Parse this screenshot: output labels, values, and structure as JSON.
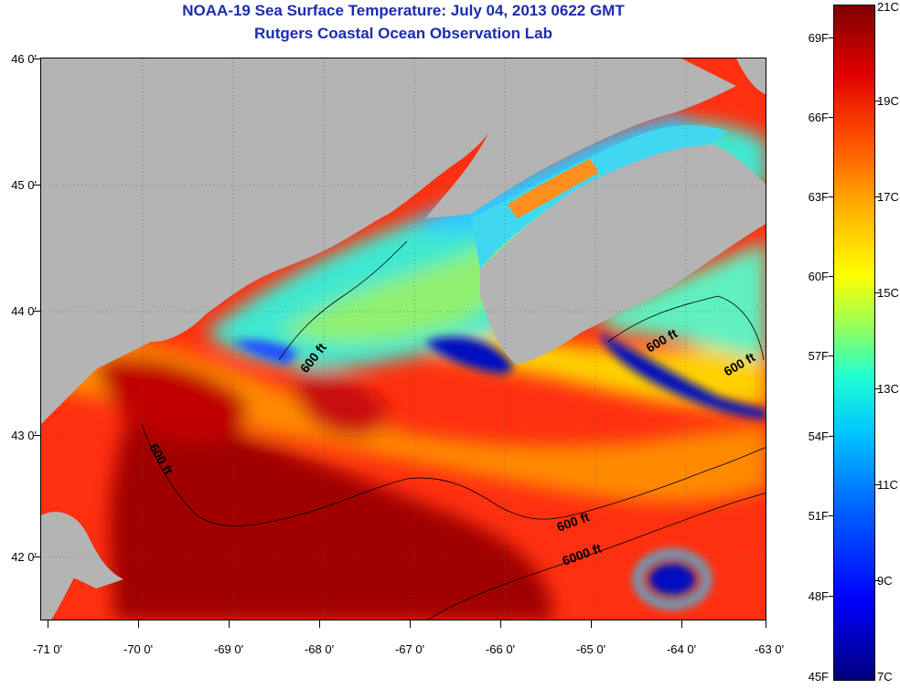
{
  "header": {
    "title": "NOAA-19 Sea Surface Temperature:  July 04, 2013 0622 GMT",
    "subtitle": "Rutgers Coastal Ocean Observation Lab"
  },
  "axes": {
    "lat_labels": [
      "46 0'",
      "45 0'",
      "44 0'",
      "43 0'",
      "42 0'"
    ],
    "lon_labels": [
      "-71 0'",
      "-70 0'",
      "-69 0'",
      "-68 0'",
      "-67 0'",
      "-66 0'",
      "-65 0'",
      "-64 0'",
      "-63 0'"
    ]
  },
  "colorbar": {
    "fahrenheit": [
      "69F",
      "66F",
      "63F",
      "60F",
      "57F",
      "54F",
      "51F",
      "48F",
      "45F"
    ],
    "celsius": [
      "21C",
      "19C",
      "17C",
      "15C",
      "13C",
      "11C",
      "9C",
      "7C"
    ]
  },
  "contours": {
    "labels": [
      "600 ft",
      "600 ft",
      "600 ft",
      "600 ft",
      "600 ft",
      "6000 ft"
    ]
  },
  "colors": {
    "land": "#b4b4b4",
    "title": "#1a2db0",
    "warm": "#e01010",
    "hot": "#8b0000",
    "cool": "#20d0f0",
    "cold": "#0010c0"
  }
}
